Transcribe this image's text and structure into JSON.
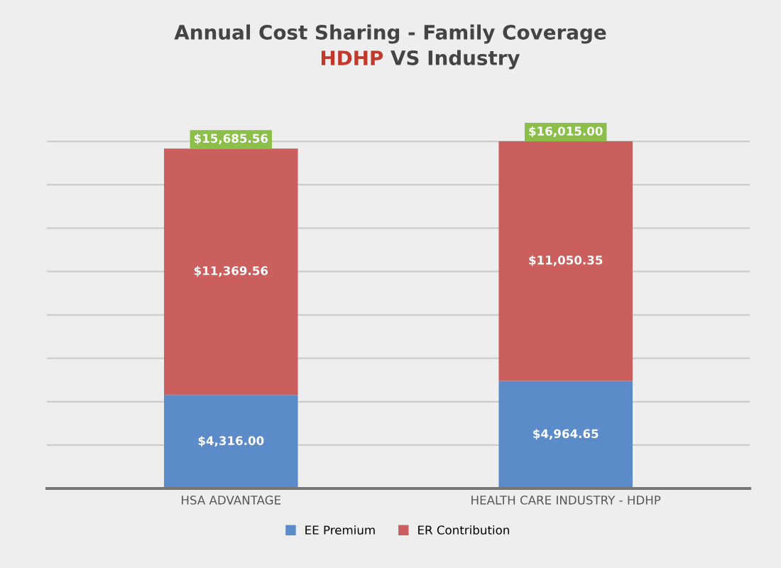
{
  "chart_data": {
    "type": "bar",
    "title": "Annual Cost Sharing - Family Coverage",
    "subtitle": "HDHP VS Industry",
    "categories": [
      "HSA ADVANTAGE",
      "HEALTH CARE INDUSTRY - HDHP"
    ],
    "stacked": true,
    "series": [
      {
        "name": "EE Premium",
        "color": "#5b8bc9",
        "values": [
          4316.0,
          4964.65
        ],
        "value_labels": [
          "$4,316.00",
          "$4,964.65"
        ]
      },
      {
        "name": "ER Contribution",
        "color": "#cb5f5d",
        "values": [
          11369.56,
          11050.35
        ],
        "value_labels": [
          "$11,369.56",
          "$11,050.35"
        ]
      }
    ],
    "totals": [
      "$15,685.56",
      "$16,015.00"
    ],
    "grid": "y",
    "legend": "bottom",
    "tick_labels": "x"
  }
}
